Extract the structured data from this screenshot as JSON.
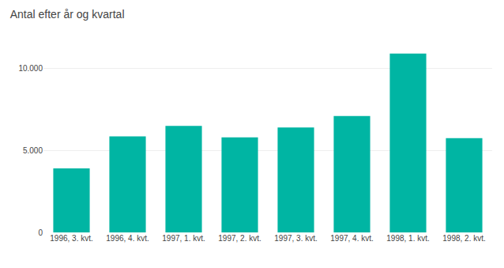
{
  "chart_data": {
    "type": "bar",
    "title": "Antal efter år og kvartal",
    "categories": [
      "1996, 3. kvt.",
      "1996, 4. kvt.",
      "1997, 1. kvt.",
      "1997, 2. kvt.",
      "1997, 3. kvt.",
      "1997, 4. kvt.",
      "1998, 1. kvt.",
      "1998, 2. kvt."
    ],
    "values": [
      3900,
      5850,
      6500,
      5800,
      6400,
      7100,
      10900,
      5750
    ],
    "color": "#00B5A3",
    "ylim": [
      0,
      12000
    ],
    "yticks": [
      0,
      {
        "value": 5000,
        "label": "5.000"
      },
      {
        "value": 10000,
        "label": "10.000"
      }
    ],
    "grid": true
  }
}
